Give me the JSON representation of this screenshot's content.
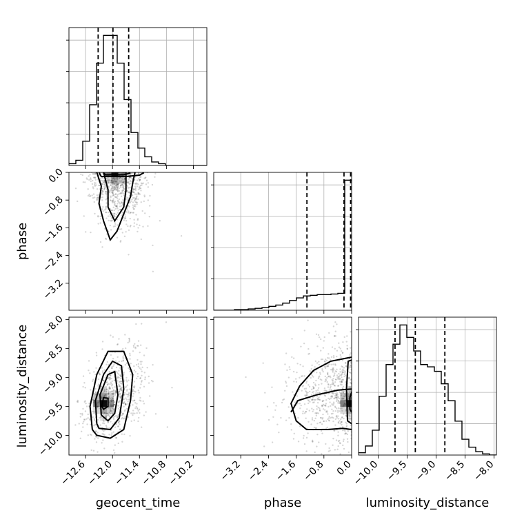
{
  "chart_data": {
    "type": "corner",
    "parameters": [
      {
        "name": "geocent_time",
        "label": "geocent_time",
        "ticks": [
          "−12.6",
          "−12.0",
          "−11.4",
          "−10.8",
          "−10.2"
        ],
        "tick_values": [
          -12.6,
          -12.0,
          -11.4,
          -10.8,
          -10.2
        ],
        "range": [
          -12.97,
          -9.9
        ]
      },
      {
        "name": "phase",
        "label": "phase",
        "ticks": [
          "−3.2",
          "−2.4",
          "−1.6",
          "−0.8",
          "0.0"
        ],
        "tick_values": [
          -3.2,
          -2.4,
          -1.6,
          -0.8,
          0.0
        ],
        "range": [
          -3.98,
          0.0
        ]
      },
      {
        "name": "luminosity_distance",
        "label": "luminosity_distance",
        "ticks": [
          "−10.0",
          "−9.5",
          "−9.0",
          "−8.5",
          "−8.0"
        ],
        "tick_values": [
          -10.0,
          -9.5,
          -9.0,
          -8.5,
          -8.0
        ],
        "range": [
          -10.34,
          -7.96
        ]
      }
    ],
    "histograms": [
      {
        "parameter": "geocent_time",
        "bin_edges": [
          -12.97,
          -12.8165,
          -12.663,
          -12.5095,
          -12.356,
          -12.2025,
          -12.049,
          -11.8955,
          -11.742,
          -11.5885,
          -11.435,
          -11.2815,
          -11.128,
          -10.9745,
          -10.821,
          -10.6675,
          -10.514,
          -10.3605,
          -10.207,
          -10.0535,
          -9.9
        ],
        "counts": [
          2,
          6,
          28,
          70,
          118,
          150,
          150,
          118,
          76,
          38,
          20,
          10,
          4,
          2,
          0,
          0,
          0,
          0,
          0,
          0
        ],
        "quantiles": [
          -12.32,
          -11.99,
          -11.64
        ]
      },
      {
        "parameter": "phase",
        "bin_edges": [
          -3.98,
          -3.781,
          -3.582,
          -3.383,
          -3.184,
          -2.985,
          -2.786,
          -2.587,
          -2.388,
          -2.189,
          -1.99,
          -1.791,
          -1.592,
          -1.393,
          -1.194,
          -0.995,
          -0.796,
          -0.597,
          -0.398,
          -0.199,
          0.0
        ],
        "counts": [
          0,
          0,
          0,
          1,
          1,
          2,
          3,
          4,
          6,
          8,
          11,
          15,
          19,
          22,
          23,
          24,
          24,
          25,
          26,
          200
        ],
        "quantiles": [
          -1.29,
          -0.22,
          -0.03
        ]
      },
      {
        "parameter": "luminosity_distance",
        "bin_edges": [
          -10.34,
          -10.221,
          -10.102,
          -9.983,
          -9.864,
          -9.745,
          -9.626,
          -9.507,
          -9.388,
          -9.269,
          -9.15,
          -9.031,
          -8.912,
          -8.793,
          -8.674,
          -8.555,
          -8.436,
          -8.317,
          -8.198,
          -8.079,
          -7.96
        ],
        "counts": [
          2,
          8,
          22,
          52,
          80,
          98,
          115,
          104,
          92,
          80,
          78,
          74,
          63,
          48,
          30,
          14,
          7,
          3,
          1,
          0
        ],
        "quantiles": [
          -9.71,
          -9.36,
          -8.85
        ]
      }
    ],
    "pairs": [
      {
        "x": "geocent_time",
        "y": "phase",
        "density_peak": [
          -11.95,
          -0.03
        ],
        "contours": [
          [
            [
              -12.35,
              0.0
            ],
            [
              -12.25,
              -0.4
            ],
            [
              -12.3,
              -0.9
            ],
            [
              -12.2,
              -1.4
            ],
            [
              -12.05,
              -1.95
            ],
            [
              -11.9,
              -1.7
            ],
            [
              -11.75,
              -1.2
            ],
            [
              -11.6,
              -0.7
            ],
            [
              -11.55,
              -0.3
            ],
            [
              -11.5,
              0.0
            ]
          ],
          [
            [
              -12.2,
              0.0
            ],
            [
              -12.1,
              -0.5
            ],
            [
              -12.1,
              -1.0
            ],
            [
              -11.95,
              -1.4
            ],
            [
              -11.75,
              -1.0
            ],
            [
              -11.7,
              -0.5
            ],
            [
              -11.7,
              0.0
            ]
          ],
          [
            [
              -12.3,
              -0.01
            ],
            [
              -12.25,
              -0.12
            ],
            [
              -11.7,
              -0.12
            ],
            [
              -11.4,
              -0.08
            ],
            [
              -11.3,
              -0.01
            ]
          ],
          [
            [
              -12.2,
              -0.02
            ],
            [
              -12.15,
              -0.07
            ],
            [
              -11.75,
              -0.07
            ],
            [
              -11.6,
              -0.02
            ]
          ]
        ]
      },
      {
        "x": "geocent_time",
        "y": "luminosity_distance",
        "density_peak": [
          -12.2,
          -9.45
        ],
        "contours": [
          [
            [
              -12.45,
              -9.9
            ],
            [
              -12.5,
              -9.5
            ],
            [
              -12.35,
              -8.95
            ],
            [
              -12.1,
              -8.55
            ],
            [
              -11.75,
              -8.55
            ],
            [
              -11.55,
              -8.95
            ],
            [
              -11.6,
              -9.4
            ],
            [
              -11.75,
              -9.9
            ],
            [
              -12.05,
              -10.05
            ],
            [
              -12.35,
              -10.0
            ],
            [
              -12.45,
              -9.9
            ]
          ],
          [
            [
              -12.35,
              -9.8
            ],
            [
              -12.38,
              -9.4
            ],
            [
              -12.2,
              -8.95
            ],
            [
              -12.0,
              -8.72
            ],
            [
              -11.8,
              -8.8
            ],
            [
              -11.75,
              -9.2
            ],
            [
              -11.85,
              -9.7
            ],
            [
              -12.05,
              -9.9
            ],
            [
              -12.3,
              -9.88
            ],
            [
              -12.35,
              -9.8
            ]
          ],
          [
            [
              -12.25,
              -9.65
            ],
            [
              -12.28,
              -9.3
            ],
            [
              -12.1,
              -8.95
            ],
            [
              -11.95,
              -8.9
            ],
            [
              -11.88,
              -9.3
            ],
            [
              -11.95,
              -9.62
            ],
            [
              -12.1,
              -9.75
            ],
            [
              -12.25,
              -9.65
            ]
          ],
          [
            [
              -12.24,
              -9.5
            ],
            [
              -12.2,
              -9.35
            ],
            [
              -12.1,
              -9.36
            ],
            [
              -12.1,
              -9.5
            ],
            [
              -12.2,
              -9.55
            ],
            [
              -12.24,
              -9.5
            ]
          ]
        ]
      },
      {
        "x": "phase",
        "y": "luminosity_distance",
        "density_peak": [
          -0.03,
          -9.45
        ],
        "contours": [
          [
            [
              0.0,
              -8.65
            ],
            [
              -0.6,
              -8.72
            ],
            [
              -1.1,
              -8.88
            ],
            [
              -1.5,
              -9.15
            ],
            [
              -1.75,
              -9.45
            ],
            [
              -1.6,
              -9.75
            ],
            [
              -1.3,
              -9.9
            ],
            [
              -0.7,
              -9.9
            ],
            [
              -0.25,
              -9.88
            ],
            [
              0.0,
              -9.9
            ]
          ],
          [
            [
              0.0,
              -9.2
            ],
            [
              -0.4,
              -9.22
            ],
            [
              -1.0,
              -9.3
            ],
            [
              -1.55,
              -9.4
            ],
            [
              -1.75,
              -9.6
            ]
          ],
          [
            [
              0.0,
              -8.7
            ],
            [
              -0.1,
              -8.72
            ],
            [
              -0.15,
              -9.2
            ],
            [
              -0.12,
              -9.75
            ],
            [
              0.0,
              -9.8
            ]
          ],
          [
            [
              0.0,
              -9.25
            ],
            [
              -0.05,
              -9.35
            ],
            [
              -0.05,
              -9.55
            ],
            [
              0.0,
              -9.6
            ]
          ]
        ]
      }
    ],
    "colors": {
      "line": "#000000",
      "grid": "#b0b0b0",
      "samples": "#000000",
      "density_cmap": [
        "#ffffff",
        "#000000"
      ]
    },
    "grid": true
  }
}
